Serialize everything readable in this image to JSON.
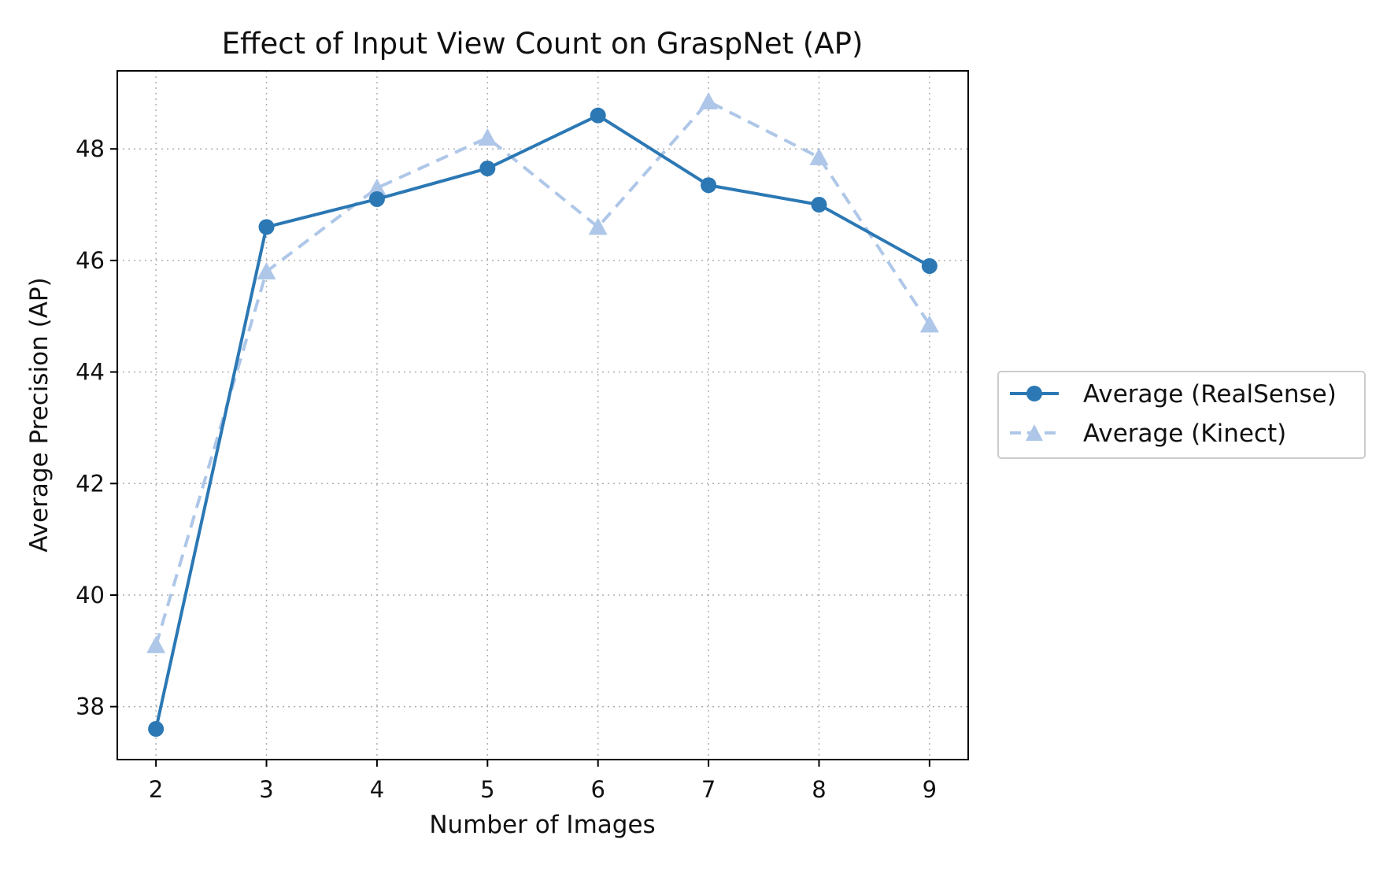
{
  "chart_data": {
    "type": "line",
    "title": "Effect of Input View Count on GraspNet (AP)",
    "xlabel": "Number of Images",
    "ylabel": "Average Precision (AP)",
    "x": [
      2,
      3,
      4,
      5,
      6,
      7,
      8,
      9
    ],
    "xticks": [
      "2",
      "3",
      "4",
      "5",
      "6",
      "7",
      "8",
      "9"
    ],
    "yticks": [
      "38",
      "40",
      "42",
      "44",
      "46",
      "48"
    ],
    "xlim": [
      1.65,
      9.35
    ],
    "ylim": [
      37.05,
      49.4
    ],
    "grid": true,
    "legend_position": "outside-right",
    "series": [
      {
        "name": "Average (RealSense)",
        "values": [
          37.6,
          46.6,
          47.1,
          47.65,
          48.6,
          47.35,
          47.0,
          45.9
        ],
        "color": "#2b78b4",
        "style": "solid",
        "marker": "circle"
      },
      {
        "name": "Average (Kinect)",
        "values": [
          39.1,
          45.8,
          47.3,
          48.2,
          46.6,
          48.85,
          47.85,
          44.85
        ],
        "color": "#aec7e8",
        "style": "dashed",
        "marker": "triangle"
      }
    ]
  }
}
